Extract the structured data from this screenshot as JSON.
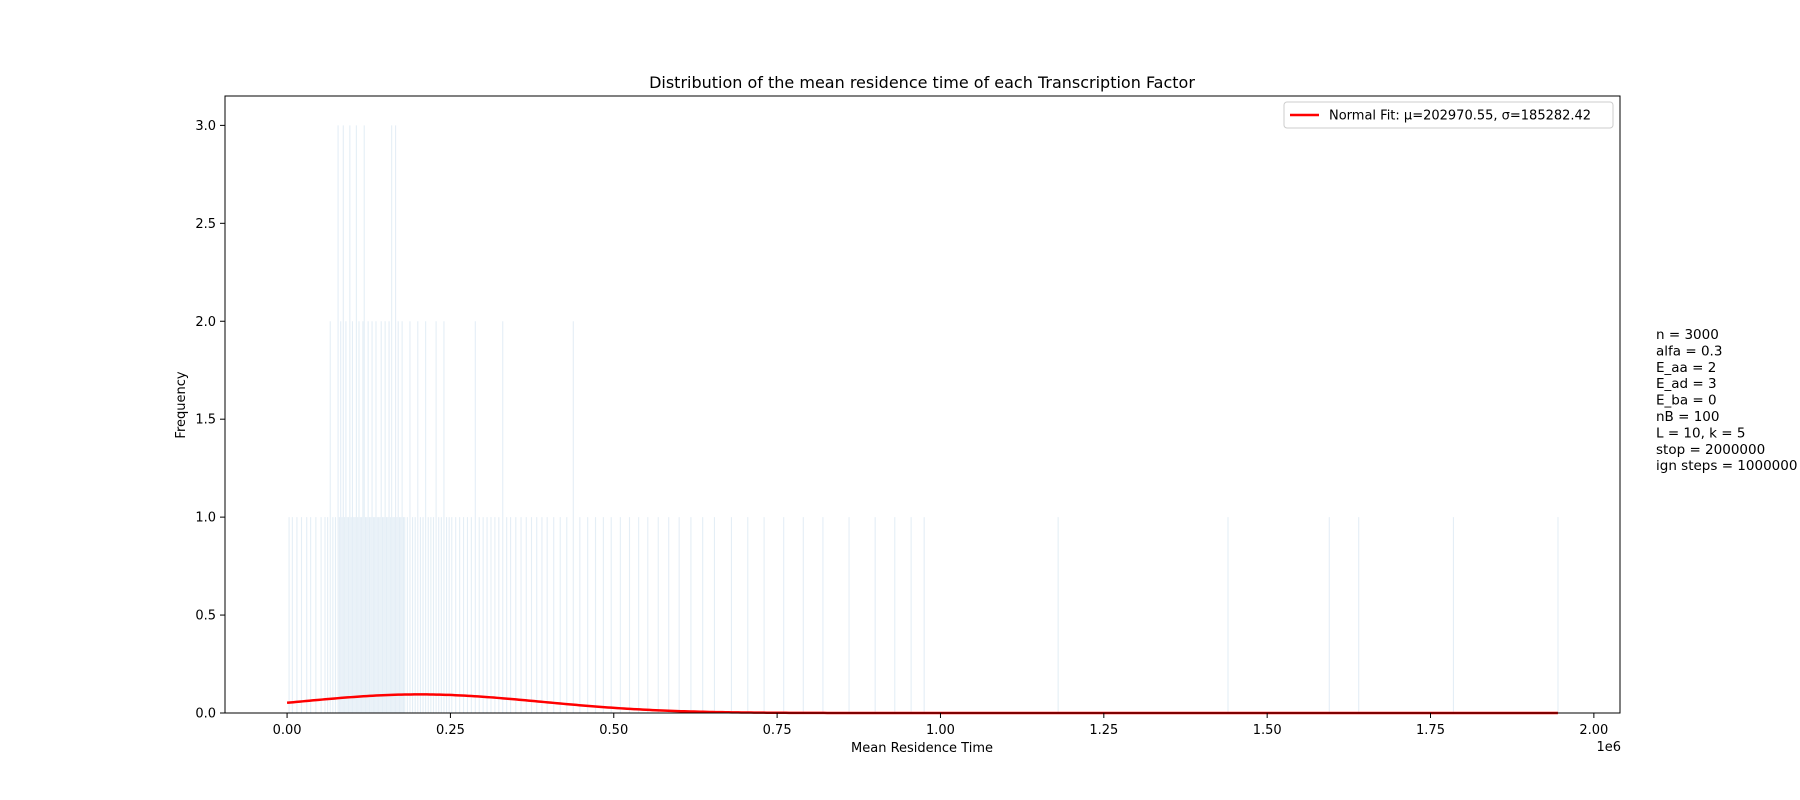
{
  "chart_data": {
    "type": "bar",
    "title": "Distribution of the mean residence time of each Transcription Factor",
    "xlabel": "Mean Residence Time",
    "ylabel": "Frequency",
    "x_offset_label": "1e6",
    "xlim": [
      -95000,
      2040000
    ],
    "ylim": [
      0,
      3.15
    ],
    "xticks": [
      0,
      250000,
      500000,
      750000,
      1000000,
      1250000,
      1500000,
      1750000,
      2000000
    ],
    "xtick_labels": [
      "0.00",
      "0.25",
      "0.50",
      "0.75",
      "1.00",
      "1.25",
      "1.50",
      "1.75",
      "2.00"
    ],
    "yticks": [
      0,
      0.5,
      1,
      1.5,
      2,
      2.5,
      3
    ],
    "ytick_labels": [
      "0.0",
      "0.5",
      "1.0",
      "1.5",
      "2.0",
      "2.5",
      "3.0"
    ],
    "grid": false,
    "legend_position": "top-right",
    "histogram": {
      "color": "#1f77b4",
      "bins": [
        [
          3000,
          1
        ],
        [
          8000,
          1
        ],
        [
          15000,
          1
        ],
        [
          22000,
          1
        ],
        [
          30000,
          1
        ],
        [
          36000,
          1
        ],
        [
          44000,
          1
        ],
        [
          52000,
          1
        ],
        [
          58000,
          1
        ],
        [
          62000,
          1
        ],
        [
          66000,
          2
        ],
        [
          70000,
          1
        ],
        [
          74000,
          1
        ],
        [
          78000,
          3
        ],
        [
          80000,
          1
        ],
        [
          82000,
          2
        ],
        [
          84000,
          1
        ],
        [
          86000,
          3
        ],
        [
          88000,
          1
        ],
        [
          90000,
          2
        ],
        [
          92000,
          1
        ],
        [
          94000,
          1
        ],
        [
          96000,
          3
        ],
        [
          98000,
          1
        ],
        [
          100000,
          2
        ],
        [
          102000,
          1
        ],
        [
          104000,
          1
        ],
        [
          106000,
          3
        ],
        [
          108000,
          1
        ],
        [
          110000,
          2
        ],
        [
          112000,
          1
        ],
        [
          114000,
          1
        ],
        [
          116000,
          2
        ],
        [
          118000,
          3
        ],
        [
          120000,
          1
        ],
        [
          122000,
          1
        ],
        [
          124000,
          2
        ],
        [
          126000,
          1
        ],
        [
          128000,
          1
        ],
        [
          130000,
          2
        ],
        [
          132000,
          1
        ],
        [
          134000,
          1
        ],
        [
          136000,
          2
        ],
        [
          138000,
          1
        ],
        [
          140000,
          1
        ],
        [
          142000,
          1
        ],
        [
          144000,
          2
        ],
        [
          146000,
          1
        ],
        [
          148000,
          1
        ],
        [
          150000,
          2
        ],
        [
          152000,
          1
        ],
        [
          154000,
          1
        ],
        [
          156000,
          2
        ],
        [
          158000,
          1
        ],
        [
          160000,
          3
        ],
        [
          162000,
          1
        ],
        [
          164000,
          1
        ],
        [
          166000,
          3
        ],
        [
          168000,
          1
        ],
        [
          170000,
          2
        ],
        [
          172000,
          1
        ],
        [
          174000,
          1
        ],
        [
          176000,
          2
        ],
        [
          178000,
          1
        ],
        [
          180000,
          1
        ],
        [
          184000,
          1
        ],
        [
          188000,
          2
        ],
        [
          192000,
          1
        ],
        [
          196000,
          1
        ],
        [
          200000,
          2
        ],
        [
          204000,
          1
        ],
        [
          208000,
          1
        ],
        [
          212000,
          2
        ],
        [
          216000,
          1
        ],
        [
          220000,
          1
        ],
        [
          224000,
          1
        ],
        [
          228000,
          2
        ],
        [
          232000,
          1
        ],
        [
          236000,
          1
        ],
        [
          240000,
          2
        ],
        [
          244000,
          1
        ],
        [
          248000,
          1
        ],
        [
          252000,
          1
        ],
        [
          258000,
          1
        ],
        [
          264000,
          1
        ],
        [
          270000,
          1
        ],
        [
          276000,
          1
        ],
        [
          282000,
          1
        ],
        [
          288000,
          2
        ],
        [
          294000,
          1
        ],
        [
          300000,
          1
        ],
        [
          306000,
          1
        ],
        [
          312000,
          1
        ],
        [
          318000,
          1
        ],
        [
          324000,
          1
        ],
        [
          330000,
          2
        ],
        [
          336000,
          1
        ],
        [
          342000,
          1
        ],
        [
          350000,
          1
        ],
        [
          358000,
          1
        ],
        [
          366000,
          1
        ],
        [
          374000,
          1
        ],
        [
          382000,
          1
        ],
        [
          390000,
          1
        ],
        [
          398000,
          1
        ],
        [
          408000,
          1
        ],
        [
          418000,
          1
        ],
        [
          428000,
          1
        ],
        [
          438000,
          2
        ],
        [
          448000,
          1
        ],
        [
          460000,
          1
        ],
        [
          472000,
          1
        ],
        [
          484000,
          1
        ],
        [
          496000,
          1
        ],
        [
          510000,
          1
        ],
        [
          524000,
          1
        ],
        [
          538000,
          1
        ],
        [
          552000,
          1
        ],
        [
          568000,
          1
        ],
        [
          584000,
          1
        ],
        [
          600000,
          1
        ],
        [
          618000,
          1
        ],
        [
          636000,
          1
        ],
        [
          654000,
          1
        ],
        [
          680000,
          1
        ],
        [
          705000,
          1
        ],
        [
          730000,
          1
        ],
        [
          760000,
          1
        ],
        [
          790000,
          1
        ],
        [
          820000,
          1
        ],
        [
          860000,
          1
        ],
        [
          900000,
          1
        ],
        [
          930000,
          1
        ],
        [
          955000,
          1
        ],
        [
          975000,
          1
        ],
        [
          1180000,
          1
        ],
        [
          1440000,
          1
        ],
        [
          1595000,
          1
        ],
        [
          1640000,
          1
        ],
        [
          1785000,
          1
        ],
        [
          1945000,
          1
        ]
      ]
    },
    "series": [
      {
        "name": "Normal Fit: μ=202970.55, σ=185282.42",
        "type": "line",
        "color": "#ff0000",
        "x_range": [
          0,
          1945000
        ],
        "x": [
          0,
          100000,
          202970.55,
          300000,
          400000,
          500000,
          600000,
          700000,
          800000,
          1000000,
          1500000,
          1945000
        ],
        "y": [
          0.055,
          0.082,
          0.095,
          0.083,
          0.053,
          0.026,
          0.01,
          0.003,
          0.0006,
          0.0,
          0.0,
          0.0
        ]
      }
    ],
    "annotation_lines": [
      "n = 3000",
      "alfa = 0.3",
      "E_aa = 2",
      "E_ad = 3",
      "E_ba = 0",
      "nB = 100",
      "L = 10, k = 5",
      "stop = 2000000",
      "ign steps = 1000000"
    ]
  }
}
